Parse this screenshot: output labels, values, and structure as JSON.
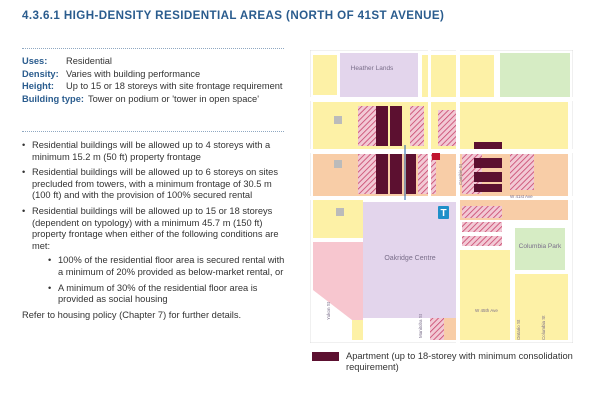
{
  "title": "4.3.6.1 HIGH-DENSITY RESIDENTIAL AREAS (NORTH OF 41ST AVENUE)",
  "attributes": [
    {
      "key": "Uses:",
      "value": "Residential"
    },
    {
      "key": "Density:",
      "value": "Varies with building performance"
    },
    {
      "key": "Height:",
      "value": "Up to 15 or 18 storeys with site frontage requirement"
    },
    {
      "key": "Building type:",
      "value": "Tower on podium or 'tower in open space'"
    }
  ],
  "bullets": [
    "Residential buildings will be allowed up to 4 storeys with a minimum 15.2 m (50 ft) property frontage",
    "Residential buildings will be allowed up to 6 storeys on sites precluded from towers, with a minimum frontage of 30.5 m (100 ft) and with the provision of 100% secured rental",
    "Residential buildings will be allowed up to 15 or 18 storeys (dependent on typology) with a minimum 45.7 m (150 ft) property frontage when either of the following conditions are met:"
  ],
  "sub_bullets": [
    "100% of the residential floor area is secured rental with a minimum of 20% provided as below-market rental, or",
    "A minimum of 30% of the residential floor area is provided as social housing"
  ],
  "reference": "Refer to housing policy (Chapter 7) for further details.",
  "map": {
    "labels": {
      "heather_lands": "Heather Lands",
      "oakridge_centre": "Oakridge Centre",
      "columbia_park": "Columbia Park",
      "cambie_st": "Cambie St",
      "w41": "W 41st Ave",
      "w45": "W 45th Ave",
      "manitoba": "Manitoba St",
      "yukon": "Yukon St",
      "ontario": "Ontario St",
      "columbia": "Columbia St"
    },
    "colors": {
      "apartment": "#5c1030",
      "hatch": "#c7426a",
      "yellow": "#fdf1a6",
      "pink": "#f7c6cf",
      "peach": "#f8cda7",
      "lavender": "#e3d5ec",
      "green": "#d6ecc4"
    }
  },
  "legend": {
    "label": "Apartment (up to 18-storey with minimum consolidation requirement)"
  }
}
